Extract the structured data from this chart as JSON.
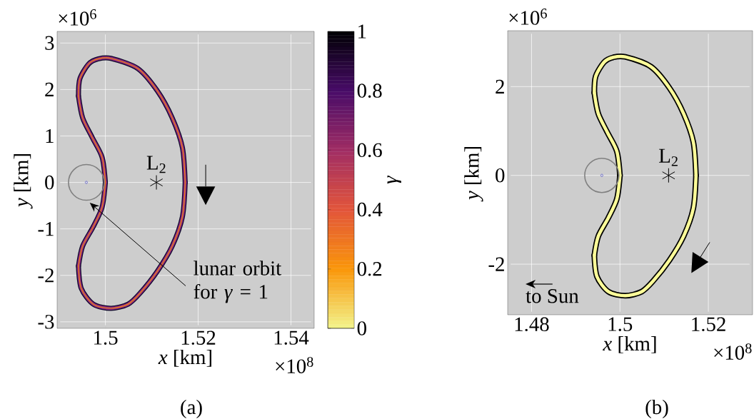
{
  "chart_data": [
    {
      "type": "line",
      "xlabel": "*x* [km]",
      "ylabel": "*y* [km]",
      "clabel": "*γ*",
      "clim": [
        0,
        1
      ],
      "cticks": [
        0,
        0.2,
        0.4,
        0.6,
        0.8,
        1
      ],
      "grid": true,
      "xlim": [
        1.4896,
        1.545
      ],
      "xticks": [
        1.5,
        1.52,
        1.54
      ],
      "ylim": [
        -3.14,
        3.25
      ],
      "yticks": [
        -3,
        -2,
        -1,
        0,
        1,
        2,
        3
      ],
      "series": [
        {
          "color": "#0d0829",
          "x": [
            1.4942,
            1.4945,
            1.4964,
            1.4985,
            1.5012,
            1.507,
            1.5112,
            1.5144,
            1.5166,
            1.5172
          ],
          "values": [
            1.86,
            2.23,
            2.55,
            2.66,
            2.67,
            2.45,
            1.97,
            1.39,
            0.75,
            0
          ]
        },
        {
          "color": "#0d0829",
          "x": [
            1.4942,
            1.4948,
            1.4974,
            1.5012,
            1.5049,
            1.5075,
            1.5112,
            1.5144,
            1.5166,
            1.5172
          ],
          "values": [
            -1.8,
            -2.28,
            -2.62,
            -2.71,
            -2.62,
            -2.38,
            -1.91,
            -1.37,
            -0.74,
            0
          ]
        },
        {
          "color": "#0d0829",
          "x": [
            1.4942,
            1.4951,
            1.4974,
            1.4993,
            1.5
          ],
          "values": [
            -1.8,
            -1.37,
            -0.95,
            -0.53,
            0
          ]
        },
        {
          "color": "#0d0829",
          "x": [
            1.4942,
            1.4951,
            1.4972,
            1.4993,
            1.5
          ],
          "values": [
            1.86,
            1.39,
            0.96,
            0.54,
            0
          ]
        },
        {
          "color": "#8c2981",
          "x": [
            1.4942,
            1.4945,
            1.4964,
            1.4985,
            1.5012,
            1.507,
            1.5112,
            1.5144,
            1.5166,
            1.5172
          ],
          "values": [
            1.86,
            2.23,
            2.55,
            2.66,
            2.67,
            2.45,
            1.97,
            1.39,
            0.75,
            0
          ]
        },
        {
          "color": "#8c2981",
          "x": [
            1.4942,
            1.4948,
            1.4974,
            1.5012,
            1.5049,
            1.5075,
            1.5112,
            1.5144,
            1.5166,
            1.5172
          ],
          "values": [
            -1.8,
            -2.28,
            -2.62,
            -2.71,
            -2.62,
            -2.38,
            -1.91,
            -1.37,
            -0.74,
            0
          ]
        },
        {
          "color": "#8c2981",
          "x": [
            1.4942,
            1.4951,
            1.4974,
            1.4993,
            1.5
          ],
          "values": [
            -1.8,
            -1.37,
            -0.95,
            -0.53,
            0
          ]
        },
        {
          "color": "#8c2981",
          "x": [
            1.4942,
            1.4951,
            1.4972,
            1.4993,
            1.5
          ],
          "values": [
            1.86,
            1.39,
            0.96,
            0.54,
            0
          ]
        },
        {
          "color": "#f98e09",
          "x": [
            1.4942,
            1.4945,
            1.4964,
            1.4985,
            1.5012,
            1.507,
            1.5112,
            1.5144,
            1.5166,
            1.5172
          ],
          "values": [
            1.86,
            2.23,
            2.55,
            2.66,
            2.67,
            2.45,
            1.97,
            1.39,
            0.75,
            0
          ]
        },
        {
          "color": "#f98e09",
          "x": [
            1.4942,
            1.4948,
            1.4974,
            1.5012,
            1.5049,
            1.5075,
            1.5112,
            1.5144,
            1.5166,
            1.5172
          ],
          "values": [
            -1.8,
            -2.28,
            -2.62,
            -2.71,
            -2.62,
            -2.38,
            -1.91,
            -1.37,
            -0.74,
            0
          ]
        },
        {
          "color": "#f98e09",
          "x": [
            1.4942,
            1.4951,
            1.4974,
            1.4993,
            1.5
          ],
          "values": [
            -1.8,
            -1.37,
            -0.95,
            -0.53,
            0
          ]
        },
        {
          "color": "#f98e09",
          "x": [
            1.4942,
            1.4951,
            1.4972,
            1.4993,
            1.5
          ],
          "values": [
            1.86,
            1.39,
            0.96,
            0.54,
            0
          ]
        },
        {
          "type": "scatter",
          "marker": "circle",
          "color": "#3333cc",
          "x": [
            1.4959
          ],
          "values": [
            0
          ]
        },
        {
          "type": "scatter",
          "marker": "cross",
          "color": "#000000",
          "x": [
            1.511
          ],
          "values": [
            0
          ]
        }
      ],
      "annotations": [
        "×10$^{6}$",
        "×10$^{8}$",
        "(a)",
        {
          "text": "L$_{2}$",
          "x": 1.511,
          "y": 0
        },
        "lunar orbit for *γ* = 1"
      ]
    },
    {
      "type": "line",
      "xlabel": "*x* [km]",
      "ylabel": "*y* [km]",
      "grid": true,
      "xlim": [
        1.4746,
        1.53
      ],
      "xticks": [
        1.48,
        1.5,
        1.52
      ],
      "ylim": [
        -3.14,
        3.26
      ],
      "yticks": [
        -2,
        0,
        2
      ],
      "series": [
        {
          "color": "#000000",
          "x": [
            1.4942,
            1.4945,
            1.4964,
            1.4985,
            1.5012,
            1.507,
            1.5112,
            1.5144,
            1.5166,
            1.5172
          ],
          "values": [
            1.86,
            2.23,
            2.55,
            2.66,
            2.67,
            2.45,
            1.97,
            1.39,
            0.75,
            0
          ]
        },
        {
          "color": "#000000",
          "x": [
            1.4942,
            1.4948,
            1.4974,
            1.5012,
            1.5049,
            1.5075,
            1.5112,
            1.5144,
            1.5166,
            1.5172
          ],
          "values": [
            -1.8,
            -2.28,
            -2.62,
            -2.71,
            -2.62,
            -2.38,
            -1.91,
            -1.37,
            -0.74,
            0
          ]
        },
        {
          "color": "#000000",
          "x": [
            1.4942,
            1.4951,
            1.4974,
            1.4993,
            1.5
          ],
          "values": [
            -1.8,
            -1.37,
            -0.95,
            -0.53,
            0
          ]
        },
        {
          "color": "#000000",
          "x": [
            1.4942,
            1.4951,
            1.4972,
            1.4993,
            1.5
          ],
          "values": [
            1.86,
            1.39,
            0.96,
            0.54,
            0
          ]
        },
        {
          "color": "#ffff99",
          "x": [
            1.4942,
            1.4945,
            1.4964,
            1.4985,
            1.5012,
            1.507,
            1.5112,
            1.5144,
            1.5166,
            1.5172
          ],
          "values": [
            1.86,
            2.23,
            2.55,
            2.66,
            2.67,
            2.45,
            1.97,
            1.39,
            0.75,
            0
          ]
        },
        {
          "color": "#ffff99",
          "x": [
            1.4942,
            1.4948,
            1.4974,
            1.5012,
            1.5049,
            1.5075,
            1.5112,
            1.5144,
            1.5166,
            1.5172
          ],
          "values": [
            -1.8,
            -2.28,
            -2.62,
            -2.71,
            -2.62,
            -2.38,
            -1.91,
            -1.37,
            -0.74,
            0
          ]
        },
        {
          "color": "#ffff99",
          "x": [
            1.4942,
            1.4951,
            1.4974,
            1.4993,
            1.5
          ],
          "values": [
            -1.8,
            -1.37,
            -0.95,
            -0.53,
            0
          ]
        },
        {
          "color": "#ffff99",
          "x": [
            1.4942,
            1.4951,
            1.4972,
            1.4993,
            1.5
          ],
          "values": [
            1.86,
            1.39,
            0.96,
            0.54,
            0
          ]
        },
        {
          "type": "scatter",
          "marker": "circle",
          "color": "#3333cc",
          "x": [
            1.4959
          ],
          "values": [
            0
          ]
        },
        {
          "type": "scatter",
          "marker": "cross",
          "color": "#000000",
          "x": [
            1.511
          ],
          "values": [
            0
          ]
        }
      ],
      "annotations": [
        "×10$^{6}$",
        "×10$^{8}$",
        "to Sun",
        "(b)",
        {
          "text": "L$_{2}$",
          "x": 1.511,
          "y": 0
        }
      ]
    }
  ]
}
